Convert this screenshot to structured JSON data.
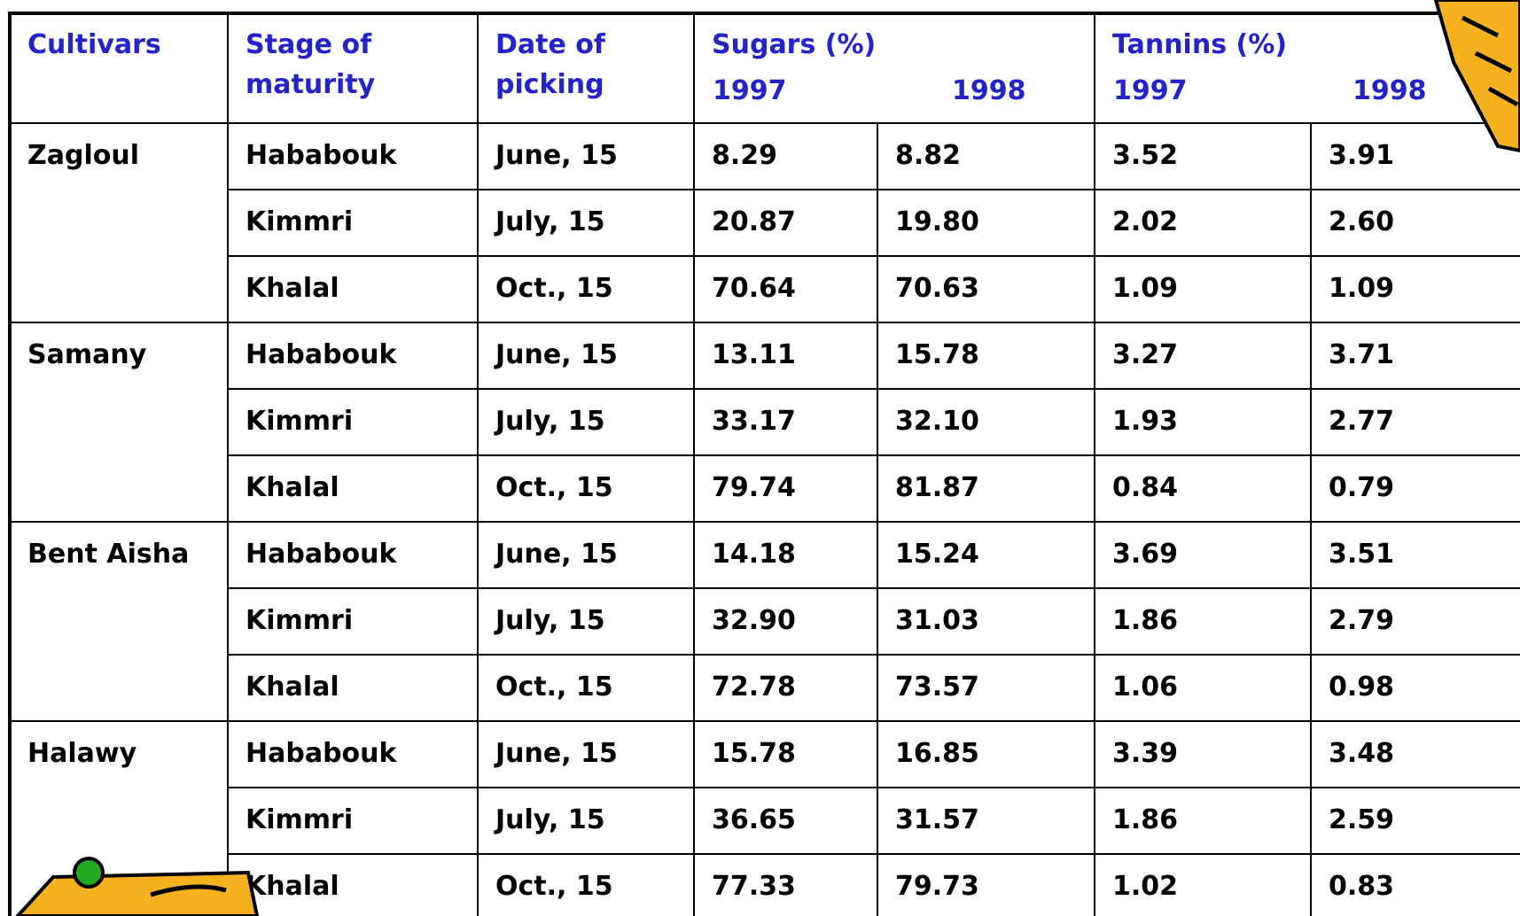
{
  "table": {
    "headers": {
      "cultivars": [
        "Cultivars"
      ],
      "stage": [
        "Stage of",
        "maturity"
      ],
      "date": [
        "Date of",
        "picking"
      ],
      "sugars": "Sugars (%)",
      "tannins": "Tannins (%)",
      "years": [
        "1997",
        "1998",
        "1997",
        "1998"
      ]
    },
    "groups": [
      {
        "cultivar": "Zagloul",
        "rows": [
          [
            "Hababouk",
            "June, 15",
            "8.29",
            "8.82",
            "3.52",
            "3.91"
          ],
          [
            "Kimmri",
            "July, 15",
            "20.87",
            "19.80",
            "2.02",
            "2.60"
          ],
          [
            "Khalal",
            "Oct., 15",
            "70.64",
            "70.63",
            "1.09",
            "1.09"
          ]
        ]
      },
      {
        "cultivar": "Samany",
        "rows": [
          [
            "Hababouk",
            "June, 15",
            "13.11",
            "15.78",
            "3.27",
            "3.71"
          ],
          [
            "Kimmri",
            "July, 15",
            "33.17",
            "32.10",
            "1.93",
            "2.77"
          ],
          [
            "Khalal",
            "Oct., 15",
            "79.74",
            "81.87",
            "0.84",
            "0.79"
          ]
        ]
      },
      {
        "cultivar": "Bent Aisha",
        "rows": [
          [
            "Hababouk",
            "June, 15",
            "14.18",
            "15.24",
            "3.69",
            "3.51"
          ],
          [
            "Kimmri",
            "July, 15",
            "32.90",
            "31.03",
            "1.86",
            "2.79"
          ],
          [
            "Khalal",
            "Oct., 15",
            "72.78",
            "73.57",
            "1.06",
            "0.98"
          ]
        ]
      },
      {
        "cultivar": "Halawy",
        "rows": [
          [
            "Hababouk",
            "June, 15",
            "15.78",
            "16.85",
            "3.39",
            "3.48"
          ],
          [
            "Kimmri",
            "July, 15",
            "36.65",
            "31.57",
            "1.86",
            "2.59"
          ],
          [
            "Khalal",
            "Oct., 15",
            "77.33",
            "79.73",
            "1.02",
            "0.83"
          ]
        ]
      }
    ]
  }
}
